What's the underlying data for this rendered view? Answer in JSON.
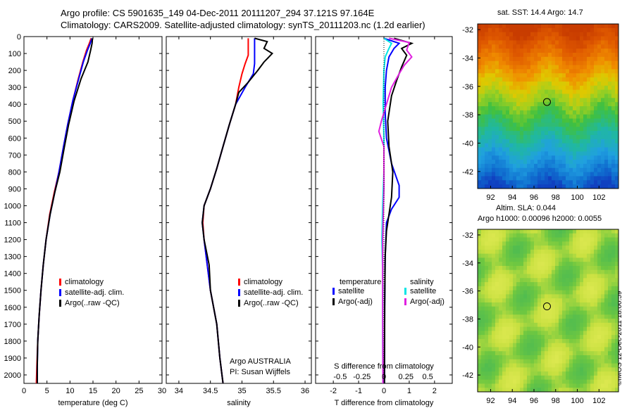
{
  "header": {
    "line1": "Argo profile: CS 5901635_149 04-Dec-2011 20111207_294 37.121S 97.164E",
    "line2": "Climatology: CARS2009. Satellite-adjusted climatology: synTS_20111203.nc (1.2d earlier)"
  },
  "sst_map": {
    "title": "sat. SST: 14.4  Argo: 14.7"
  },
  "sla_map": {
    "title1": "Altim. SLA: 0.044",
    "title2": "Argo h1000: 0.00096 h2000: 0.0055"
  },
  "credit": {
    "text": "©IMOS 12-Dec-2011 18:00:59"
  },
  "colors": {
    "climatology": "#ff0000",
    "satellite": "#0000ff",
    "argo": "#000000",
    "sat_salinity": "#00e5e5",
    "argo_salinity": "#e020e0"
  },
  "chart_data": [
    {
      "type": "line",
      "name": "temperature",
      "xlabel": "temperature (deg C)",
      "xlim": [
        0,
        30
      ],
      "xticks": [
        "0",
        "5",
        "10",
        "15",
        "20",
        "25",
        "30"
      ],
      "ylim": [
        2050,
        0
      ],
      "yticks": [
        "0",
        "100",
        "200",
        "300",
        "400",
        "500",
        "600",
        "700",
        "800",
        "900",
        "1000",
        "1100",
        "1200",
        "1300",
        "1400",
        "1500",
        "1600",
        "1700",
        "1800",
        "1900",
        "2000"
      ],
      "legend": [
        "climatology",
        "satellite-adj. clim.",
        "Argo(..raw -QC)"
      ],
      "series": [
        {
          "name": "climatology",
          "points": [
            [
              14.6,
              10
            ],
            [
              14.2,
              40
            ],
            [
              13.6,
              80
            ],
            [
              12.8,
              150
            ],
            [
              11.8,
              250
            ],
            [
              10.6,
              380
            ],
            [
              9.5,
              520
            ],
            [
              8.6,
              650
            ],
            [
              7.6,
              800
            ],
            [
              6.6,
              920
            ],
            [
              5.6,
              1050
            ],
            [
              4.8,
              1200
            ],
            [
              4.2,
              1350
            ],
            [
              3.7,
              1500
            ],
            [
              3.3,
              1650
            ],
            [
              3.0,
              1800
            ],
            [
              2.8,
              1950
            ],
            [
              2.7,
              2050
            ]
          ]
        },
        {
          "name": "satellite-adj. clim.",
          "points": [
            [
              14.8,
              10
            ],
            [
              14.4,
              40
            ],
            [
              13.8,
              80
            ],
            [
              12.9,
              150
            ],
            [
              11.9,
              250
            ],
            [
              10.6,
              380
            ],
            [
              9.5,
              520
            ],
            [
              8.6,
              650
            ],
            [
              7.6,
              800
            ],
            [
              6.7,
              920
            ],
            [
              5.7,
              1050
            ],
            [
              4.8,
              1200
            ],
            [
              4.2,
              1350
            ],
            [
              3.7,
              1500
            ],
            [
              3.3,
              1650
            ],
            [
              3.0,
              1800
            ],
            [
              2.9,
              1950
            ],
            [
              2.9,
              2050
            ]
          ]
        },
        {
          "name": "Argo(..raw -QC)",
          "points": [
            [
              14.9,
              10
            ],
            [
              14.8,
              40
            ],
            [
              14.5,
              80
            ],
            [
              13.9,
              150
            ],
            [
              12.4,
              250
            ],
            [
              10.9,
              380
            ],
            [
              9.7,
              520
            ],
            [
              8.8,
              650
            ],
            [
              7.8,
              800
            ],
            [
              6.7,
              920
            ],
            [
              5.7,
              1050
            ],
            [
              4.8,
              1200
            ],
            [
              4.2,
              1350
            ],
            [
              3.7,
              1500
            ],
            [
              3.3,
              1650
            ],
            [
              3.0,
              1800
            ],
            [
              2.9,
              1950
            ],
            [
              2.9,
              2050
            ]
          ]
        }
      ]
    },
    {
      "type": "line",
      "name": "salinity",
      "xlabel": "salinity",
      "xlim": [
        33.8,
        36.1
      ],
      "xticks": [
        "34",
        "34.5",
        "35",
        "35.5",
        "36"
      ],
      "ylim": [
        2050,
        0
      ],
      "legend": [
        "climatology",
        "satellite-adj. clim.",
        "Argo(..raw -QC)"
      ],
      "annotation": [
        "Argo AUSTRALIA",
        "PI: Susan Wijffels"
      ],
      "series": [
        {
          "name": "climatology",
          "points": [
            [
              35.1,
              10
            ],
            [
              35.1,
              60
            ],
            [
              35.1,
              110
            ],
            [
              35.05,
              160
            ],
            [
              35.0,
              220
            ],
            [
              34.95,
              300
            ],
            [
              34.9,
              400
            ],
            [
              34.8,
              520
            ],
            [
              34.7,
              650
            ],
            [
              34.6,
              780
            ],
            [
              34.5,
              900
            ],
            [
              34.4,
              1000
            ],
            [
              34.38,
              1100
            ],
            [
              34.4,
              1200
            ],
            [
              34.45,
              1350
            ],
            [
              34.5,
              1500
            ],
            [
              34.6,
              1700
            ],
            [
              34.65,
              1900
            ],
            [
              34.7,
              2050
            ]
          ]
        },
        {
          "name": "satellite-adj. clim.",
          "points": [
            [
              35.2,
              10
            ],
            [
              35.2,
              60
            ],
            [
              35.2,
              110
            ],
            [
              35.2,
              160
            ],
            [
              35.18,
              220
            ],
            [
              35.05,
              300
            ],
            [
              34.9,
              400
            ],
            [
              34.8,
              520
            ],
            [
              34.7,
              650
            ],
            [
              34.6,
              780
            ],
            [
              34.5,
              900
            ],
            [
              34.4,
              1000
            ],
            [
              34.37,
              1100
            ],
            [
              34.4,
              1200
            ],
            [
              34.45,
              1350
            ],
            [
              34.5,
              1500
            ],
            [
              34.6,
              1700
            ],
            [
              34.65,
              1900
            ],
            [
              34.7,
              2050
            ]
          ]
        },
        {
          "name": "Argo(..raw -QC)",
          "points": [
            [
              35.2,
              10
            ],
            [
              35.4,
              30
            ],
            [
              35.35,
              70
            ],
            [
              35.48,
              100
            ],
            [
              35.35,
              150
            ],
            [
              35.25,
              200
            ],
            [
              35.1,
              270
            ],
            [
              34.95,
              330
            ],
            [
              34.9,
              400
            ],
            [
              34.8,
              520
            ],
            [
              34.7,
              650
            ],
            [
              34.6,
              780
            ],
            [
              34.5,
              900
            ],
            [
              34.4,
              1000
            ],
            [
              34.37,
              1100
            ],
            [
              34.4,
              1200
            ],
            [
              34.48,
              1350
            ],
            [
              34.5,
              1500
            ],
            [
              34.6,
              1700
            ],
            [
              34.65,
              1900
            ],
            [
              34.7,
              2050
            ]
          ]
        }
      ]
    },
    {
      "type": "line",
      "name": "difference",
      "xlabel": "T difference from climatology",
      "xlabel_top": "S difference from climatology",
      "xticks": [
        "-2",
        "-1",
        "0",
        "1",
        "2"
      ],
      "xticks_top": [
        "-0.5",
        "-0.25",
        "0",
        "0.25",
        "0.5"
      ],
      "xlim": [
        -2.7,
        2.7
      ],
      "ylim": [
        2050,
        0
      ],
      "legend": {
        "temperature_header": "temperature",
        "salinity_header": "salinity",
        "temperature_items": [
          "satellite",
          "Argo(-adj)"
        ],
        "salinity_items": [
          "satellite",
          "Argo(-adj)"
        ]
      },
      "series": [
        {
          "name": "satellite",
          "points": [
            [
              0.0,
              10
            ],
            [
              0.6,
              40
            ],
            [
              0.4,
              70
            ],
            [
              0.2,
              120
            ],
            [
              0.1,
              200
            ],
            [
              0.05,
              300
            ],
            [
              0.05,
              450
            ],
            [
              0.1,
              600
            ],
            [
              0.3,
              750
            ],
            [
              0.6,
              880
            ],
            [
              0.6,
              950
            ],
            [
              0.3,
              1020
            ],
            [
              0.1,
              1100
            ],
            [
              0.05,
              1300
            ],
            [
              0.03,
              1600
            ],
            [
              0.02,
              2050
            ]
          ]
        },
        {
          "name": "Argo(-adj)",
          "points": [
            [
              0.4,
              10
            ],
            [
              1.1,
              40
            ],
            [
              0.7,
              70
            ],
            [
              0.9,
              110
            ],
            [
              0.7,
              180
            ],
            [
              0.5,
              260
            ],
            [
              0.3,
              350
            ],
            [
              0.15,
              500
            ],
            [
              0.2,
              650
            ],
            [
              0.35,
              800
            ],
            [
              0.3,
              950
            ],
            [
              0.2,
              1050
            ],
            [
              0.1,
              1150
            ],
            [
              0.05,
              1300
            ],
            [
              0.03,
              1600
            ],
            [
              0.02,
              2050
            ]
          ]
        },
        {
          "name": "satellite (salinity)",
          "points": [
            [
              0.0,
              10
            ],
            [
              0.3,
              40
            ],
            [
              0.2,
              70
            ],
            [
              0.05,
              120
            ],
            [
              0.0,
              200
            ],
            [
              -0.03,
              400
            ],
            [
              0.0,
              600
            ],
            [
              0.0,
              800
            ],
            [
              -0.05,
              1000
            ],
            [
              -0.08,
              1200
            ],
            [
              -0.05,
              1400
            ],
            [
              -0.05,
              1600
            ],
            [
              -0.05,
              1800
            ],
            [
              -0.04,
              2050
            ]
          ]
        },
        {
          "name": "Argo(-adj) (salinity)",
          "points": [
            [
              0.2,
              10
            ],
            [
              1.0,
              35
            ],
            [
              0.9,
              80
            ],
            [
              1.1,
              120
            ],
            [
              0.8,
              170
            ],
            [
              0.6,
              220
            ],
            [
              0.3,
              300
            ],
            [
              0.1,
              400
            ],
            [
              -0.1,
              500
            ],
            [
              -0.2,
              560
            ],
            [
              0.0,
              650
            ],
            [
              0.0,
              900
            ],
            [
              -0.05,
              1200
            ],
            [
              -0.05,
              1600
            ],
            [
              -0.04,
              2050
            ]
          ]
        }
      ]
    },
    {
      "type": "heatmap",
      "name": "sst",
      "title": "sat. SST: 14.4  Argo: 14.7",
      "xticks": [
        "92",
        "94",
        "96",
        "98",
        "100",
        "102"
      ],
      "yticks": [
        "-32",
        "-34",
        "-36",
        "-38",
        "-40",
        "-42"
      ],
      "xlim": [
        90.8,
        103.8
      ],
      "ylim": [
        -43.2,
        -31.6
      ],
      "marker": [
        97.2,
        -37.1
      ]
    },
    {
      "type": "heatmap",
      "name": "sla",
      "title": "Altim. SLA: 0.044  Argo h1000: 0.00096 h2000: 0.0055",
      "xticks": [
        "92",
        "94",
        "96",
        "98",
        "100",
        "102"
      ],
      "yticks": [
        "-32",
        "-34",
        "-36",
        "-38",
        "-40",
        "-42"
      ],
      "xlim": [
        90.8,
        103.8
      ],
      "ylim": [
        -43.2,
        -31.6
      ],
      "marker": [
        97.2,
        -37.1
      ]
    }
  ]
}
